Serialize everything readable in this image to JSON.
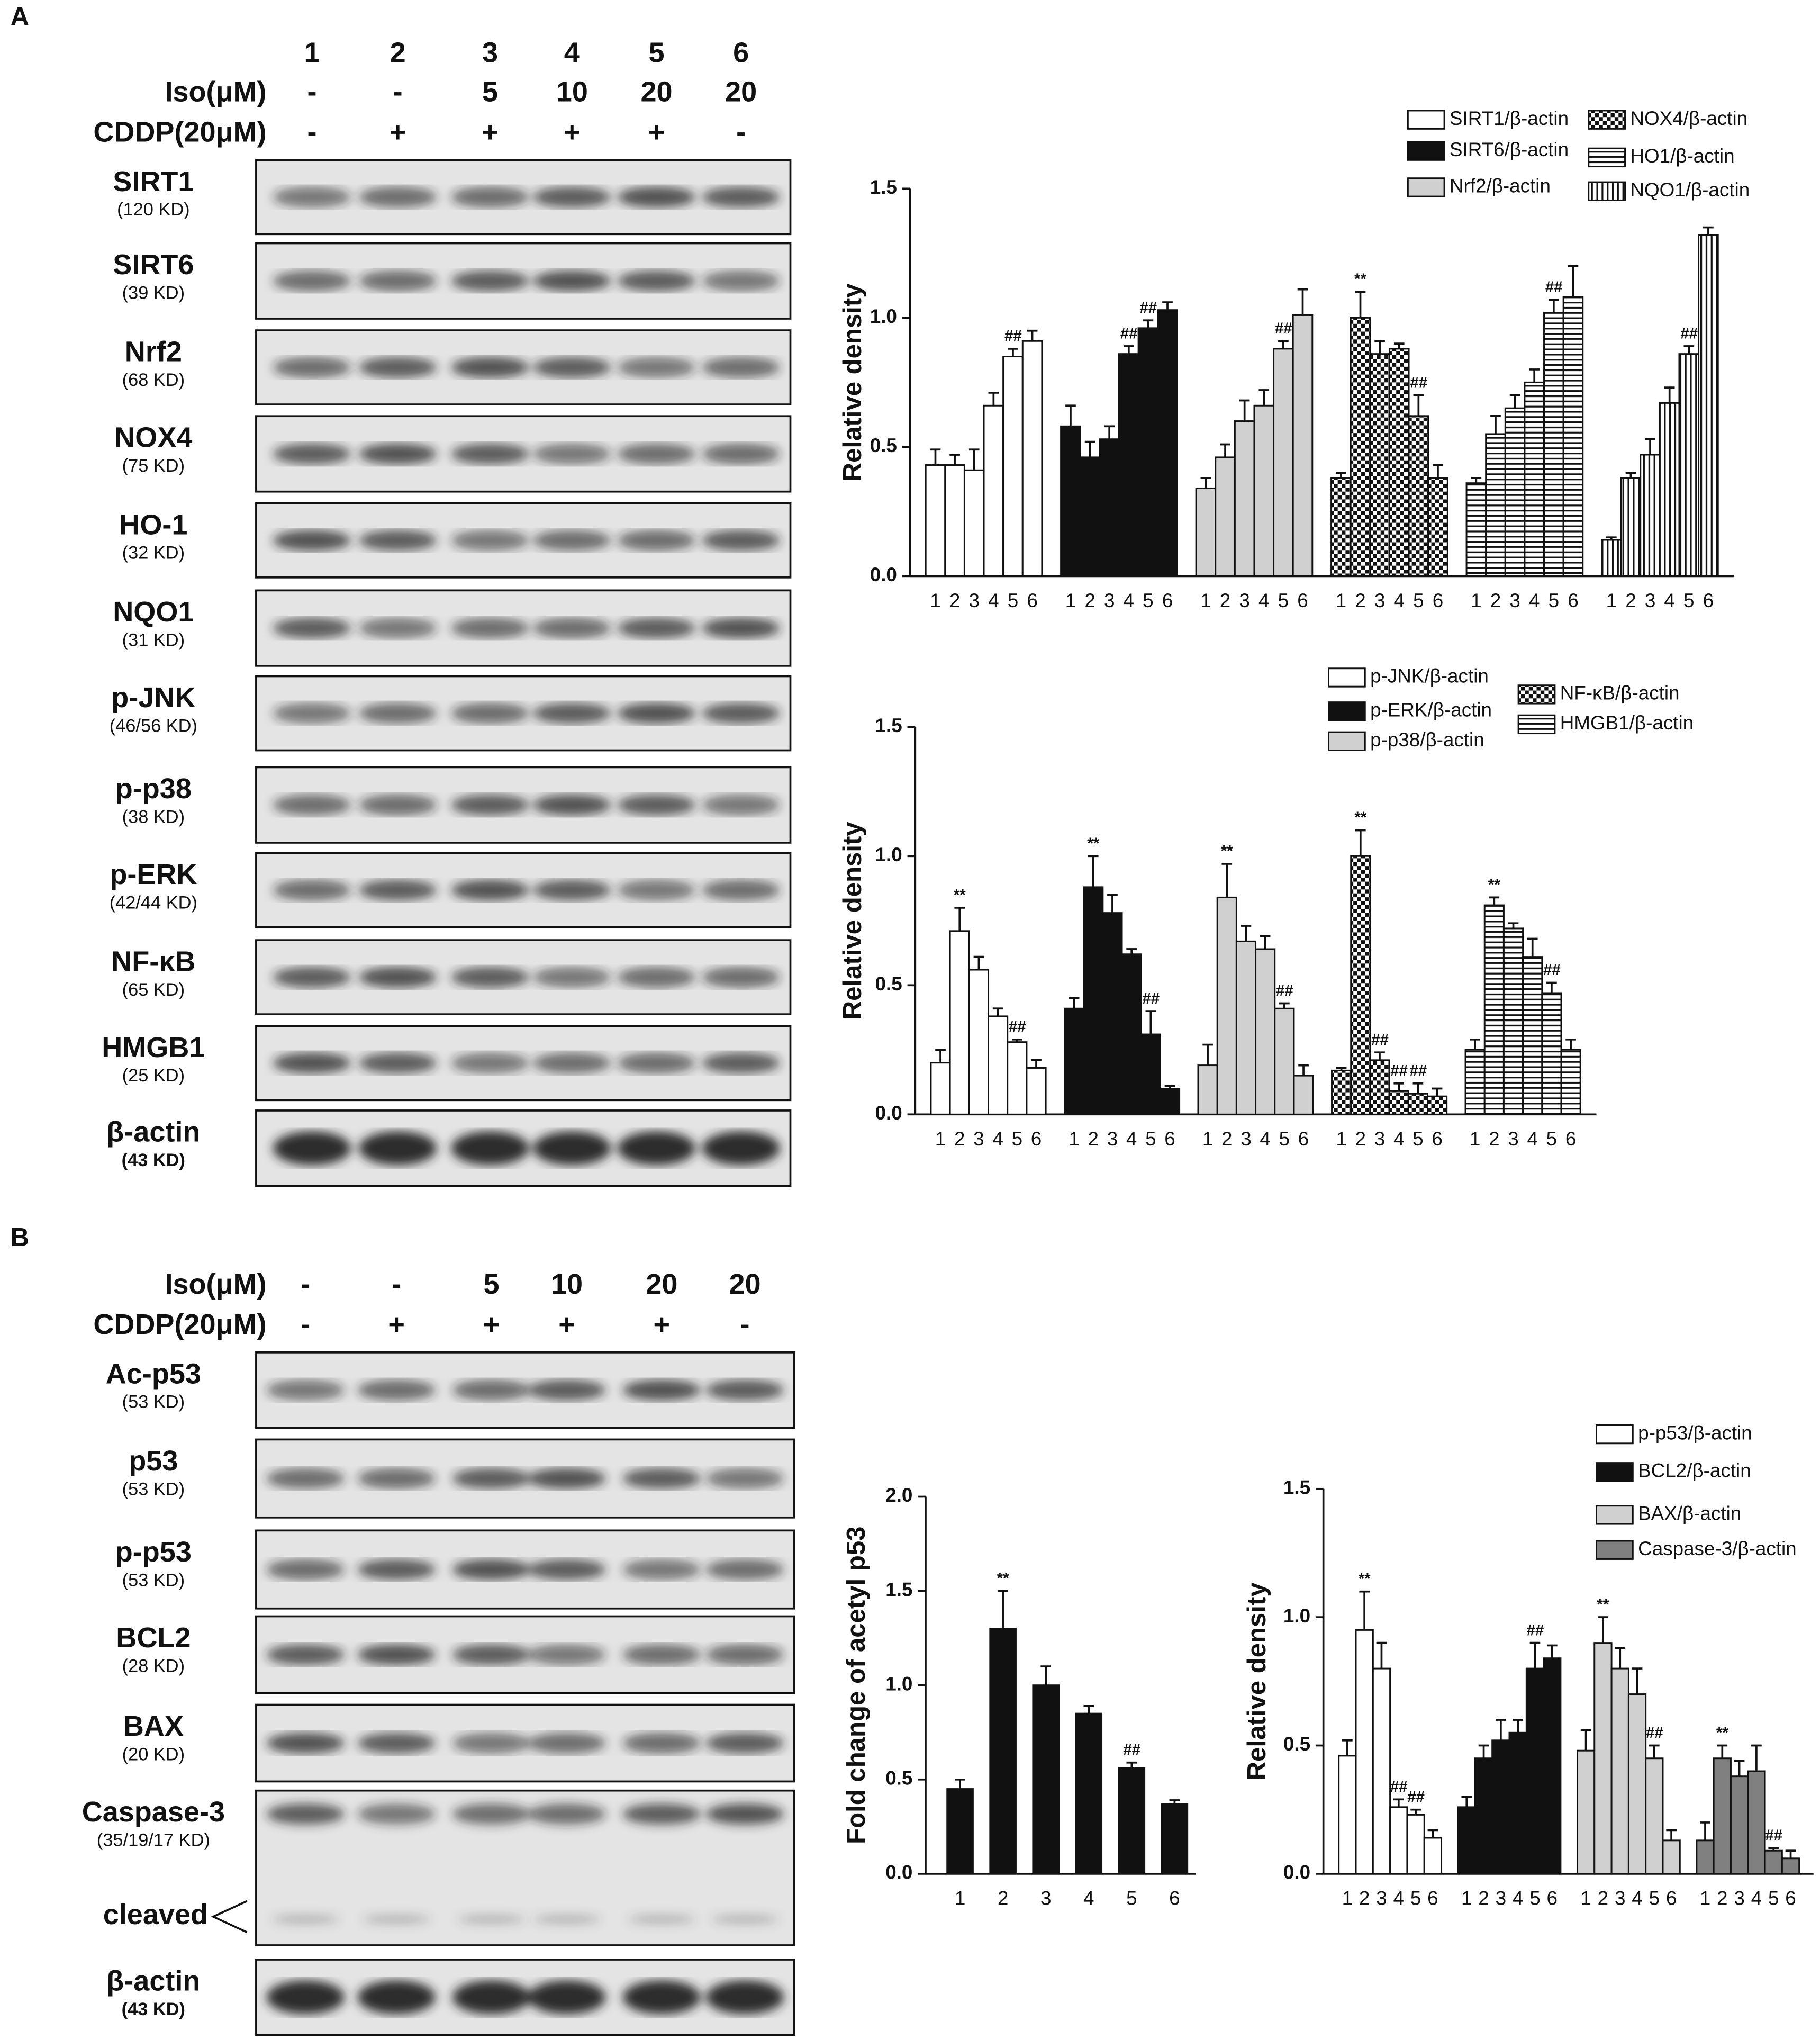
{
  "panels": [
    {
      "label": "A",
      "lanes": [
        "1",
        "2",
        "3",
        "4",
        "5",
        "6"
      ],
      "iso_label": "Iso(μM)",
      "iso": [
        "-",
        "-",
        "5",
        "10",
        "20",
        "20"
      ],
      "cddp_label": "CDDP(20μM)",
      "cddp": [
        "-",
        "+",
        "+",
        "+",
        "+",
        "-"
      ],
      "blots": [
        {
          "name": "SIRT1",
          "size": "(120 KD)"
        },
        {
          "name": "SIRT6",
          "size": "(39 KD)"
        },
        {
          "name": "Nrf2",
          "size": "(68 KD)"
        },
        {
          "name": "NOX4",
          "size": "(75 KD)"
        },
        {
          "name": "HO-1",
          "size": "(32 KD)"
        },
        {
          "name": "NQO1",
          "size": "(31 KD)"
        },
        {
          "name": "p-JNK",
          "size": "(46/56 KD)"
        },
        {
          "name": "p-p38",
          "size": "(38 KD)"
        },
        {
          "name": "p-ERK",
          "size": "(42/44 KD)"
        },
        {
          "name": "NF-κB",
          "size": "(65 KD)"
        },
        {
          "name": "HMGB1",
          "size": "(25 KD)"
        },
        {
          "name": "β-actin",
          "size": "(43 KD)"
        }
      ]
    },
    {
      "label": "B",
      "iso_label": "Iso(μM)",
      "iso": [
        "-",
        "-",
        "5",
        "10",
        "20",
        "20"
      ],
      "cddp_label": "CDDP(20μM)",
      "cddp": [
        "-",
        "+",
        "+",
        "+",
        "+",
        "-"
      ],
      "blots": [
        {
          "name": "Ac-p53",
          "size": "(53 KD)"
        },
        {
          "name": "p53",
          "size": "(53 KD)"
        },
        {
          "name": "p-p53",
          "size": "(53 KD)"
        },
        {
          "name": "BCL2",
          "size": "(28 KD)"
        },
        {
          "name": "BAX",
          "size": "(20 KD)"
        },
        {
          "name": "Caspase-3",
          "size": "(35/19/17 KD)",
          "extra": "cleaved"
        },
        {
          "name": "β-actin",
          "size": "(43 KD)"
        }
      ]
    }
  ],
  "chart_data": [
    {
      "type": "bar",
      "y_label": "Relative density",
      "ylim": [
        0,
        1.5
      ],
      "yticks": [
        {
          "value": 0,
          "label": "0.0"
        },
        {
          "value": 0.5,
          "label": "0.5"
        },
        {
          "value": 1,
          "label": "1.0"
        },
        {
          "value": 1.5,
          "label": "1.5"
        }
      ],
      "categories": [
        "1",
        "2",
        "3",
        "4",
        "5",
        "6"
      ],
      "series": [
        {
          "name": "SIRT1/β-actin",
          "color": "#ffffff",
          "pattern": "plain",
          "values": [
            0.43,
            0.43,
            0.41,
            0.66,
            0.85,
            0.91
          ],
          "errors": [
            0.06,
            0.04,
            0.08,
            0.05,
            0.03,
            0.04
          ],
          "annotations": [
            null,
            null,
            null,
            null,
            "##",
            null
          ]
        },
        {
          "name": "SIRT6/β-actin",
          "color": "#111111",
          "pattern": "plain",
          "values": [
            0.58,
            0.46,
            0.53,
            0.86,
            0.96,
            1.03
          ],
          "errors": [
            0.08,
            0.06,
            0.05,
            0.03,
            0.03,
            0.03
          ],
          "annotations": [
            null,
            null,
            null,
            "##",
            "##",
            null
          ]
        },
        {
          "name": "Nrf2/β-actin",
          "color": "#d0d0d0",
          "pattern": "plain",
          "values": [
            0.34,
            0.46,
            0.6,
            0.66,
            0.88,
            1.01
          ],
          "errors": [
            0.04,
            0.05,
            0.08,
            0.06,
            0.03,
            0.1
          ],
          "annotations": [
            null,
            null,
            null,
            null,
            "##",
            null
          ]
        },
        {
          "name": "NOX4/β-actin",
          "color": "#111111",
          "pattern": "checker",
          "values": [
            0.38,
            1.0,
            0.86,
            0.88,
            0.62,
            0.38
          ],
          "errors": [
            0.02,
            0.1,
            0.05,
            0.02,
            0.08,
            0.05
          ],
          "annotations": [
            null,
            "**",
            null,
            null,
            "##",
            null
          ]
        },
        {
          "name": "HO1/β-actin",
          "color": "#111111",
          "pattern": "hstripe",
          "values": [
            0.36,
            0.55,
            0.65,
            0.75,
            1.02,
            1.08
          ],
          "errors": [
            0.02,
            0.07,
            0.05,
            0.05,
            0.05,
            0.12
          ],
          "annotations": [
            null,
            null,
            null,
            null,
            "##",
            null
          ]
        },
        {
          "name": "NQO1/β-actin",
          "color": "#111111",
          "pattern": "vstripe",
          "values": [
            0.14,
            0.38,
            0.47,
            0.67,
            0.86,
            1.32
          ],
          "errors": [
            0.01,
            0.02,
            0.06,
            0.06,
            0.03,
            0.03
          ],
          "annotations": [
            null,
            null,
            null,
            null,
            "##",
            null
          ]
        }
      ]
    },
    {
      "type": "bar",
      "y_label": "Relative density",
      "ylim": [
        0,
        1.5
      ],
      "yticks": [
        {
          "value": 0,
          "label": "0.0"
        },
        {
          "value": 0.5,
          "label": "0.5"
        },
        {
          "value": 1,
          "label": "1.0"
        },
        {
          "value": 1.5,
          "label": "1.5"
        }
      ],
      "categories": [
        "1",
        "2",
        "3",
        "4",
        "5",
        "6"
      ],
      "series": [
        {
          "name": "p-JNK/β-actin",
          "color": "#ffffff",
          "pattern": "plain",
          "values": [
            0.2,
            0.71,
            0.56,
            0.38,
            0.28,
            0.18
          ],
          "errors": [
            0.05,
            0.09,
            0.05,
            0.03,
            0.01,
            0.03
          ],
          "annotations": [
            null,
            "**",
            null,
            null,
            "##",
            null
          ]
        },
        {
          "name": "p-ERK/β-actin",
          "color": "#111111",
          "pattern": "plain",
          "values": [
            0.41,
            0.88,
            0.78,
            0.62,
            0.31,
            0.1
          ],
          "errors": [
            0.04,
            0.12,
            0.07,
            0.02,
            0.09,
            0.01
          ],
          "annotations": [
            null,
            "**",
            null,
            null,
            "##",
            null
          ]
        },
        {
          "name": "p-p38/β-actin",
          "color": "#d0d0d0",
          "pattern": "plain",
          "values": [
            0.19,
            0.84,
            0.67,
            0.64,
            0.41,
            0.15
          ],
          "errors": [
            0.08,
            0.13,
            0.06,
            0.05,
            0.02,
            0.04
          ],
          "annotations": [
            null,
            "**",
            null,
            null,
            "##",
            null
          ]
        },
        {
          "name": "NF-κB/β-actin",
          "color": "#111111",
          "pattern": "checker",
          "values": [
            0.17,
            1.0,
            0.21,
            0.09,
            0.08,
            0.07
          ],
          "errors": [
            0.01,
            0.1,
            0.03,
            0.03,
            0.04,
            0.03
          ],
          "annotations": [
            null,
            "**",
            "##",
            "##",
            "##",
            null
          ]
        },
        {
          "name": "HMGB1/β-actin",
          "color": "#111111",
          "pattern": "hstripe",
          "values": [
            0.25,
            0.81,
            0.72,
            0.61,
            0.47,
            0.25
          ],
          "errors": [
            0.04,
            0.03,
            0.02,
            0.07,
            0.04,
            0.04
          ],
          "annotations": [
            null,
            "**",
            null,
            null,
            "##",
            null
          ]
        }
      ]
    },
    {
      "type": "bar",
      "y_label": "Fold change of acetyl p53",
      "ylim": [
        0,
        2
      ],
      "yticks": [
        {
          "value": 0,
          "label": "0.0"
        },
        {
          "value": 0.5,
          "label": "0.5"
        },
        {
          "value": 1,
          "label": "1.0"
        },
        {
          "value": 1.5,
          "label": "1.5"
        },
        {
          "value": 2,
          "label": "2.0"
        }
      ],
      "categories": [
        "1",
        "2",
        "3",
        "4",
        "5",
        "6"
      ],
      "series": [
        {
          "color": "#111111",
          "pattern": "plain",
          "values": [
            0.45,
            1.3,
            1.0,
            0.85,
            0.56,
            0.37
          ],
          "errors": [
            0.05,
            0.2,
            0.1,
            0.04,
            0.03,
            0.02
          ],
          "annotations": [
            null,
            "**",
            null,
            null,
            "##",
            null
          ]
        }
      ]
    },
    {
      "type": "bar",
      "y_label": "Relative density",
      "ylim": [
        0,
        1.5
      ],
      "yticks": [
        {
          "value": 0,
          "label": "0.0"
        },
        {
          "value": 0.5,
          "label": "0.5"
        },
        {
          "value": 1,
          "label": "1.0"
        },
        {
          "value": 1.5,
          "label": "1.5"
        }
      ],
      "categories": [
        "1",
        "2",
        "3",
        "4",
        "5",
        "6"
      ],
      "series": [
        {
          "name": "p-p53/β-actin",
          "color": "#ffffff",
          "pattern": "plain",
          "values": [
            0.46,
            0.95,
            0.8,
            0.26,
            0.23,
            0.14
          ],
          "errors": [
            0.06,
            0.15,
            0.1,
            0.03,
            0.02,
            0.03
          ],
          "annotations": [
            null,
            "**",
            null,
            "##",
            "##",
            null
          ]
        },
        {
          "name": "BCL2/β-actin",
          "color": "#111111",
          "pattern": "plain",
          "values": [
            0.26,
            0.45,
            0.52,
            0.55,
            0.8,
            0.84
          ],
          "errors": [
            0.04,
            0.05,
            0.08,
            0.05,
            0.1,
            0.05
          ],
          "annotations": [
            null,
            null,
            null,
            null,
            "##",
            null
          ]
        },
        {
          "name": "BAX/β-actin",
          "color": "#d0d0d0",
          "pattern": "plain",
          "values": [
            0.48,
            0.9,
            0.8,
            0.7,
            0.45,
            0.13
          ],
          "errors": [
            0.08,
            0.1,
            0.08,
            0.1,
            0.05,
            0.04
          ],
          "annotations": [
            null,
            "**",
            null,
            null,
            "##",
            null
          ]
        },
        {
          "name": "Caspase-3/β-actin",
          "color": "#808080",
          "pattern": "plain",
          "values": [
            0.13,
            0.45,
            0.38,
            0.4,
            0.09,
            0.06
          ],
          "errors": [
            0.07,
            0.05,
            0.06,
            0.1,
            0.01,
            0.03
          ],
          "annotations": [
            null,
            "**",
            null,
            null,
            "##",
            null
          ]
        }
      ]
    }
  ]
}
